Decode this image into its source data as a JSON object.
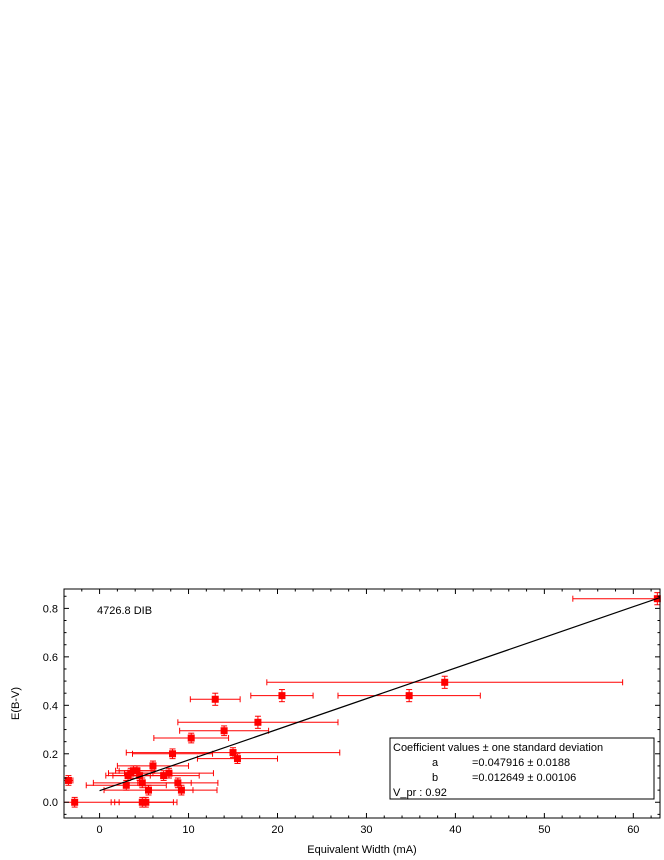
{
  "chart_data": {
    "type": "scatter",
    "xlabel": "Equivalent Width (mA)",
    "ylabel": "E(B-V)",
    "xlim": [
      -4,
      63
    ],
    "ylim": [
      -0.065,
      0.88
    ],
    "xticks": [
      0,
      10,
      20,
      30,
      40,
      50,
      60
    ],
    "yticks": [
      0.0,
      0.2,
      0.4,
      0.6,
      0.8
    ],
    "xtick_labels": [
      "0",
      "10",
      "20",
      "30",
      "40",
      "50",
      "60"
    ],
    "ytick_labels": [
      "0.0",
      "0.2",
      "0.4",
      "0.6",
      "0.8"
    ],
    "grid": false,
    "annotation": "4726.8 DIB",
    "marker_color": "#ff0000",
    "fit_line_color": "#000000",
    "fit": {
      "a": 0.047916,
      "b": 0.012649
    },
    "legend": {
      "placement": "bottom-right",
      "title": "Coefficient values ± one standard deviation",
      "rows": [
        {
          "name": "a",
          "value": "=0.047916 ± 0.0188"
        },
        {
          "name": "b",
          "value": "=0.012649 ± 0.00106"
        }
      ],
      "footer": "V_pr : 0.92"
    },
    "points": [
      {
        "x": -3.5,
        "y": 0.09,
        "xerr": 0.5,
        "yerr": 0.02
      },
      {
        "x": -2.8,
        "y": 0.0,
        "xerr": 5.0,
        "yerr": 0.02
      },
      {
        "x": 3.0,
        "y": 0.07,
        "xerr": 4.5,
        "yerr": 0.02
      },
      {
        "x": 3.2,
        "y": 0.11,
        "xerr": 2.5,
        "yerr": 0.02
      },
      {
        "x": 3.5,
        "y": 0.12,
        "xerr": 2.5,
        "yerr": 0.02
      },
      {
        "x": 3.8,
        "y": 0.13,
        "xerr": 2.0,
        "yerr": 0.02
      },
      {
        "x": 4.2,
        "y": 0.13,
        "xerr": 2.0,
        "yerr": 0.02
      },
      {
        "x": 4.5,
        "y": 0.11,
        "xerr": 3.0,
        "yerr": 0.02
      },
      {
        "x": 4.8,
        "y": 0.0,
        "xerr": 3.5,
        "yerr": 0.02
      },
      {
        "x": 4.8,
        "y": 0.08,
        "xerr": 5.5,
        "yerr": 0.02
      },
      {
        "x": 5.2,
        "y": 0.0,
        "xerr": 3.5,
        "yerr": 0.02
      },
      {
        "x": 5.5,
        "y": 0.05,
        "xerr": 5.0,
        "yerr": 0.02
      },
      {
        "x": 6.0,
        "y": 0.15,
        "xerr": 4.0,
        "yerr": 0.02
      },
      {
        "x": 7.2,
        "y": 0.11,
        "xerr": 4.0,
        "yerr": 0.02
      },
      {
        "x": 7.8,
        "y": 0.12,
        "xerr": 5.0,
        "yerr": 0.02
      },
      {
        "x": 8.2,
        "y": 0.2,
        "xerr": 4.5,
        "yerr": 0.02
      },
      {
        "x": 8.8,
        "y": 0.08,
        "xerr": 4.5,
        "yerr": 0.02
      },
      {
        "x": 9.2,
        "y": 0.05,
        "xerr": 4.0,
        "yerr": 0.02
      },
      {
        "x": 10.3,
        "y": 0.265,
        "xerr": 4.2,
        "yerr": 0.02
      },
      {
        "x": 13.0,
        "y": 0.425,
        "xerr": 2.8,
        "yerr": 0.025
      },
      {
        "x": 14.0,
        "y": 0.295,
        "xerr": 5.0,
        "yerr": 0.02
      },
      {
        "x": 15.0,
        "y": 0.205,
        "xerr": 12.0,
        "yerr": 0.02
      },
      {
        "x": 15.5,
        "y": 0.18,
        "xerr": 4.5,
        "yerr": 0.02
      },
      {
        "x": 17.8,
        "y": 0.33,
        "xerr": 9.0,
        "yerr": 0.025
      },
      {
        "x": 20.5,
        "y": 0.44,
        "xerr": 3.5,
        "yerr": 0.025
      },
      {
        "x": 34.8,
        "y": 0.44,
        "xerr": 8.0,
        "yerr": 0.025
      },
      {
        "x": 38.8,
        "y": 0.495,
        "xerr": 20.0,
        "yerr": 0.025
      },
      {
        "x": 62.7,
        "y": 0.84,
        "xerr": 9.5,
        "yerr": 0.025
      }
    ]
  }
}
